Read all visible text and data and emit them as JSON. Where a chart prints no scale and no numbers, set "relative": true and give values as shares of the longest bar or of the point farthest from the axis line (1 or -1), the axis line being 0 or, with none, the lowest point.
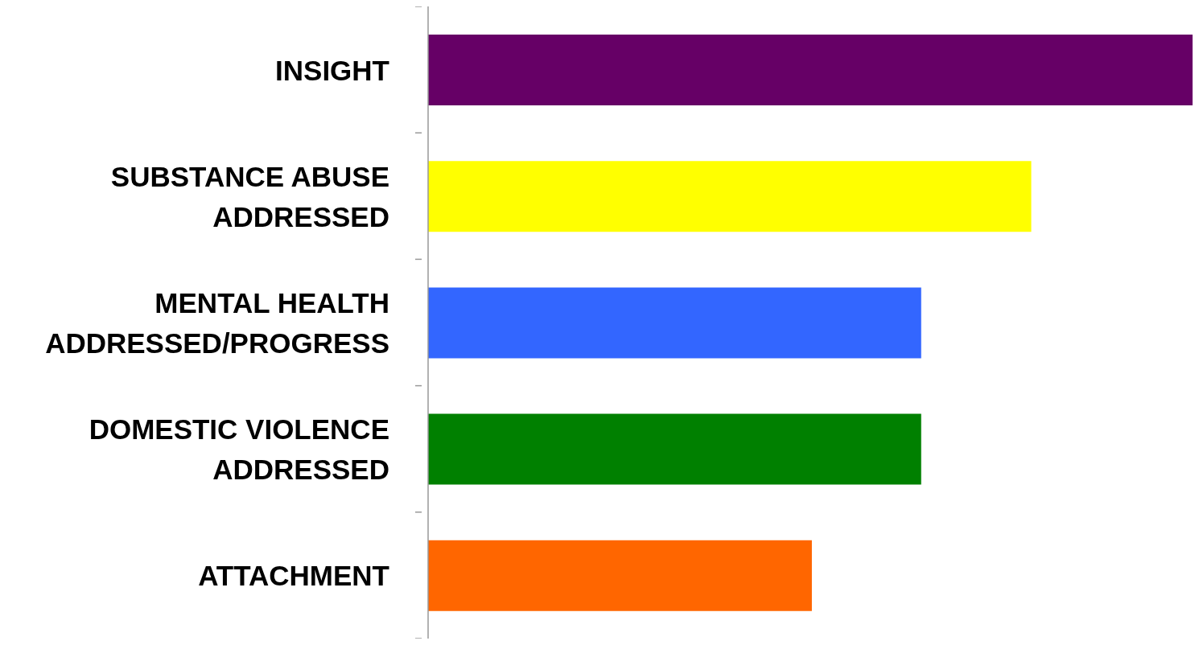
{
  "chart_data": {
    "type": "bar",
    "orientation": "horizontal",
    "relative": true,
    "categories": [
      "INSIGHT",
      "SUBSTANCE ABUSE ADDRESSED",
      "MENTAL HEALTH ADDRESSED/PROGRESS",
      "DOMESTIC VIOLENCE ADDRESSED",
      "ATTACHMENT"
    ],
    "values": [
      1,
      0.789,
      0.645,
      0.645,
      0.502
    ],
    "colors": [
      "#660066",
      "#ffff00",
      "#3366ff",
      "#008000",
      "#ff6600"
    ],
    "grid": false,
    "legend": false
  }
}
